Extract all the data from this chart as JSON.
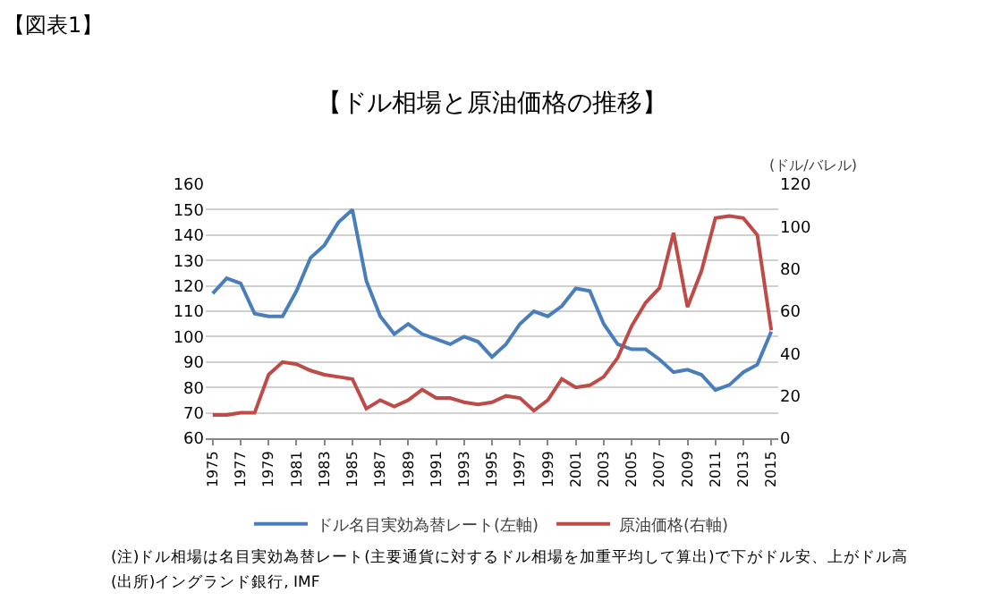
{
  "chart_data": {
    "type": "line",
    "title": "【ドル相場と原油価格の推移】",
    "y2label": "(ドル/バレル)",
    "annotations": [
      "【図表1】",
      "(注)ドル相場は名目実効為替レート(主要通貨に対するドル相場を加重平均して算出)で下がドル安、上がドル高",
      "(出所)イングランド銀行, IMF"
    ],
    "categories": [
      "1975",
      null,
      "1977",
      null,
      "1979",
      null,
      "1981",
      null,
      "1983",
      null,
      "1985",
      null,
      "1987",
      null,
      "1989",
      null,
      "1991",
      null,
      "1993",
      null,
      "1995",
      null,
      "1997",
      null,
      "1999",
      null,
      "2001",
      null,
      "2003",
      null,
      "2005",
      null,
      "2007",
      null,
      "2009",
      null,
      "2011",
      null,
      "2013",
      null,
      "2015"
    ],
    "series": [
      {
        "name": "ドル名目実効為替レート(左軸)",
        "color": "#4a7ebb",
        "values": [
          117,
          123,
          121,
          109,
          108,
          108,
          118,
          131,
          136,
          145,
          150,
          122,
          108,
          101,
          105,
          101,
          99,
          97,
          100,
          98,
          92,
          97,
          105,
          110,
          108,
          112,
          119,
          118,
          105,
          97,
          95,
          95,
          91,
          86,
          87,
          85,
          79,
          81,
          86,
          89,
          102
        ]
      },
      {
        "name": "原油価格(右軸)",
        "color": "#be4b48",
        "axis": "y2",
        "values": [
          11,
          11,
          12,
          12,
          30,
          36,
          35,
          32,
          30,
          29,
          28,
          14,
          18,
          15,
          18,
          23,
          19,
          19,
          17,
          16,
          17,
          20,
          19,
          13,
          18,
          28,
          24,
          25,
          29,
          38,
          53,
          64,
          71,
          97,
          62,
          79,
          104,
          105,
          104,
          96,
          51
        ]
      }
    ],
    "ylim": [
      60,
      160
    ],
    "yticks": [
      60,
      70,
      80,
      90,
      100,
      110,
      120,
      130,
      140,
      150,
      160
    ],
    "y2lim": [
      0,
      120
    ],
    "y2ticks": [
      0,
      20,
      40,
      60,
      80,
      100,
      120
    ],
    "grid": "y",
    "legend": "bottom",
    "marker": "none",
    "line_style": "solid"
  }
}
